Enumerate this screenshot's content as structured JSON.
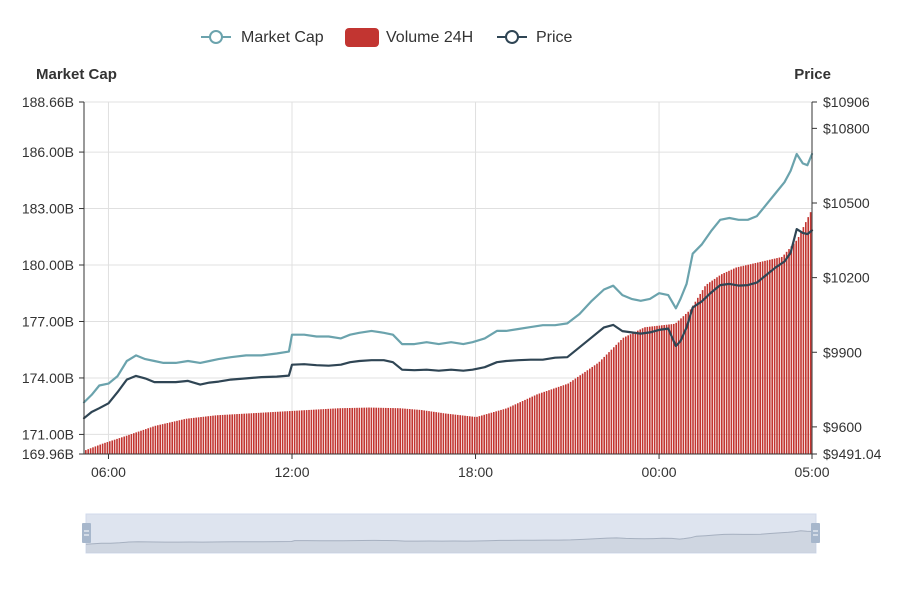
{
  "chart_data": {
    "type": "line",
    "legend": {
      "position": "top-center",
      "items": [
        {
          "name": "Market Cap",
          "color": "#6ba3ad",
          "marker": "line-circle"
        },
        {
          "name": "Volume 24H",
          "color": "#c23531",
          "marker": "rounded-rect"
        },
        {
          "name": "Price",
          "color": "#2f4554",
          "marker": "line-circle"
        }
      ]
    },
    "x_axis": {
      "ticks": [
        "06:00",
        "12:00",
        "18:00",
        "00:00",
        "05:00"
      ],
      "tick_hours": [
        6,
        12,
        18,
        24,
        29
      ],
      "range_hours": [
        5.2,
        29
      ]
    },
    "y_axis_left": {
      "title": "Market Cap",
      "unit": "B",
      "ylim": [
        169.96,
        188.66
      ],
      "ticks": [
        "169.96B",
        "171.00B",
        "174.00B",
        "177.00B",
        "180.00B",
        "183.00B",
        "186.00B",
        "188.66B"
      ],
      "tick_values": [
        169.96,
        171.0,
        174.0,
        177.0,
        180.0,
        183.0,
        186.0,
        188.66
      ]
    },
    "y_axis_right": {
      "title": "Price",
      "ylim": [
        9491.04,
        10906
      ],
      "ticks": [
        "$9491.04",
        "$9600",
        "$9900",
        "$10200",
        "$10500",
        "$10800",
        "$10906"
      ],
      "tick_values": [
        9491.04,
        9600,
        9900,
        10200,
        10500,
        10800,
        10906
      ]
    },
    "grid": true,
    "series": [
      {
        "name": "Market Cap",
        "axis": "left",
        "color": "#6ba3ad",
        "x": [
          5.2,
          5.45,
          5.7,
          6.0,
          6.3,
          6.6,
          6.9,
          7.2,
          7.5,
          7.8,
          8.2,
          8.6,
          9.0,
          9.3,
          9.6,
          10.0,
          10.5,
          11.0,
          11.5,
          11.9,
          12.0,
          12.4,
          12.8,
          13.2,
          13.6,
          13.9,
          14.2,
          14.6,
          15.0,
          15.3,
          15.6,
          16.0,
          16.4,
          16.8,
          17.2,
          17.6,
          17.9,
          18.3,
          18.7,
          19.0,
          19.4,
          19.8,
          20.2,
          20.6,
          21.0,
          21.4,
          21.8,
          22.2,
          22.5,
          22.8,
          23.1,
          23.4,
          23.7,
          24.0,
          24.3,
          24.55,
          24.7,
          24.9,
          25.1,
          25.4,
          25.7,
          26.0,
          26.3,
          26.6,
          26.9,
          27.2,
          27.5,
          27.8,
          28.1,
          28.3,
          28.5,
          28.7,
          28.85,
          29.0
        ],
        "values": [
          172.7,
          173.1,
          173.6,
          173.7,
          174.1,
          174.9,
          175.2,
          175.0,
          174.9,
          174.8,
          174.8,
          174.9,
          174.8,
          174.9,
          175.0,
          175.1,
          175.2,
          175.2,
          175.3,
          175.4,
          176.3,
          176.3,
          176.2,
          176.2,
          176.1,
          176.3,
          176.4,
          176.5,
          176.4,
          176.3,
          175.8,
          175.8,
          175.9,
          175.8,
          175.9,
          175.8,
          175.9,
          176.1,
          176.5,
          176.5,
          176.6,
          176.7,
          176.8,
          176.8,
          176.9,
          177.4,
          178.1,
          178.7,
          178.9,
          178.4,
          178.2,
          178.1,
          178.2,
          178.5,
          178.4,
          177.7,
          178.2,
          179.0,
          180.6,
          181.1,
          181.8,
          182.4,
          182.5,
          182.4,
          182.4,
          182.6,
          183.2,
          183.8,
          184.4,
          185.0,
          185.9,
          185.4,
          185.3,
          185.9
        ]
      },
      {
        "name": "Price",
        "axis": "right",
        "color": "#2f4554",
        "x": [
          5.2,
          5.45,
          5.7,
          6.0,
          6.3,
          6.6,
          6.9,
          7.2,
          7.5,
          7.8,
          8.2,
          8.6,
          9.0,
          9.3,
          9.6,
          10.0,
          10.5,
          11.0,
          11.5,
          11.9,
          12.0,
          12.4,
          12.8,
          13.2,
          13.6,
          13.9,
          14.2,
          14.6,
          15.0,
          15.3,
          15.6,
          16.0,
          16.4,
          16.8,
          17.2,
          17.6,
          17.9,
          18.3,
          18.7,
          19.0,
          19.4,
          19.8,
          20.2,
          20.6,
          21.0,
          21.4,
          21.8,
          22.2,
          22.5,
          22.8,
          23.1,
          23.4,
          23.7,
          24.0,
          24.3,
          24.55,
          24.7,
          24.9,
          25.1,
          25.4,
          25.7,
          26.0,
          26.3,
          26.6,
          26.9,
          27.2,
          27.5,
          27.8,
          28.1,
          28.3,
          28.5,
          28.7,
          28.85,
          29.0
        ],
        "values": [
          9635,
          9660,
          9675,
          9695,
          9740,
          9790,
          9805,
          9795,
          9780,
          9780,
          9780,
          9785,
          9770,
          9778,
          9782,
          9790,
          9795,
          9800,
          9802,
          9806,
          9850,
          9852,
          9848,
          9846,
          9850,
          9860,
          9865,
          9868,
          9868,
          9860,
          9830,
          9828,
          9830,
          9826,
          9830,
          9826,
          9830,
          9840,
          9860,
          9865,
          9868,
          9870,
          9870,
          9878,
          9880,
          9920,
          9960,
          10000,
          10010,
          9985,
          9980,
          9975,
          9980,
          9990,
          9995,
          9925,
          9945,
          10000,
          10080,
          10105,
          10140,
          10170,
          10175,
          10168,
          10170,
          10180,
          10210,
          10240,
          10265,
          10300,
          10395,
          10380,
          10375,
          10390
        ]
      },
      {
        "name": "Volume 24H",
        "type": "bar",
        "axis": "hidden",
        "color": "#c23531",
        "x": [
          5.2,
          5.8,
          6.5,
          7.5,
          8.5,
          9.5,
          10.5,
          11.5,
          12.5,
          13.5,
          14.5,
          15.5,
          16.2,
          17.0,
          18.0,
          19.0,
          20.0,
          21.0,
          22.0,
          22.8,
          23.5,
          24.0,
          24.5,
          25.0,
          25.5,
          26.0,
          26.5,
          27.0,
          27.5,
          28.0,
          28.5,
          29.0
        ],
        "values": [
          0.1,
          0.3,
          0.5,
          0.8,
          1.0,
          1.1,
          1.15,
          1.2,
          1.25,
          1.3,
          1.32,
          1.3,
          1.25,
          1.15,
          1.05,
          1.3,
          1.7,
          2.0,
          2.6,
          3.3,
          3.6,
          3.65,
          3.7,
          4.1,
          4.8,
          5.1,
          5.3,
          5.4,
          5.5,
          5.6,
          6.1,
          7.0
        ],
        "ylim": [
          0,
          10
        ]
      }
    ],
    "data_zoom": {
      "start_percent": 0,
      "end_percent": 100
    }
  }
}
